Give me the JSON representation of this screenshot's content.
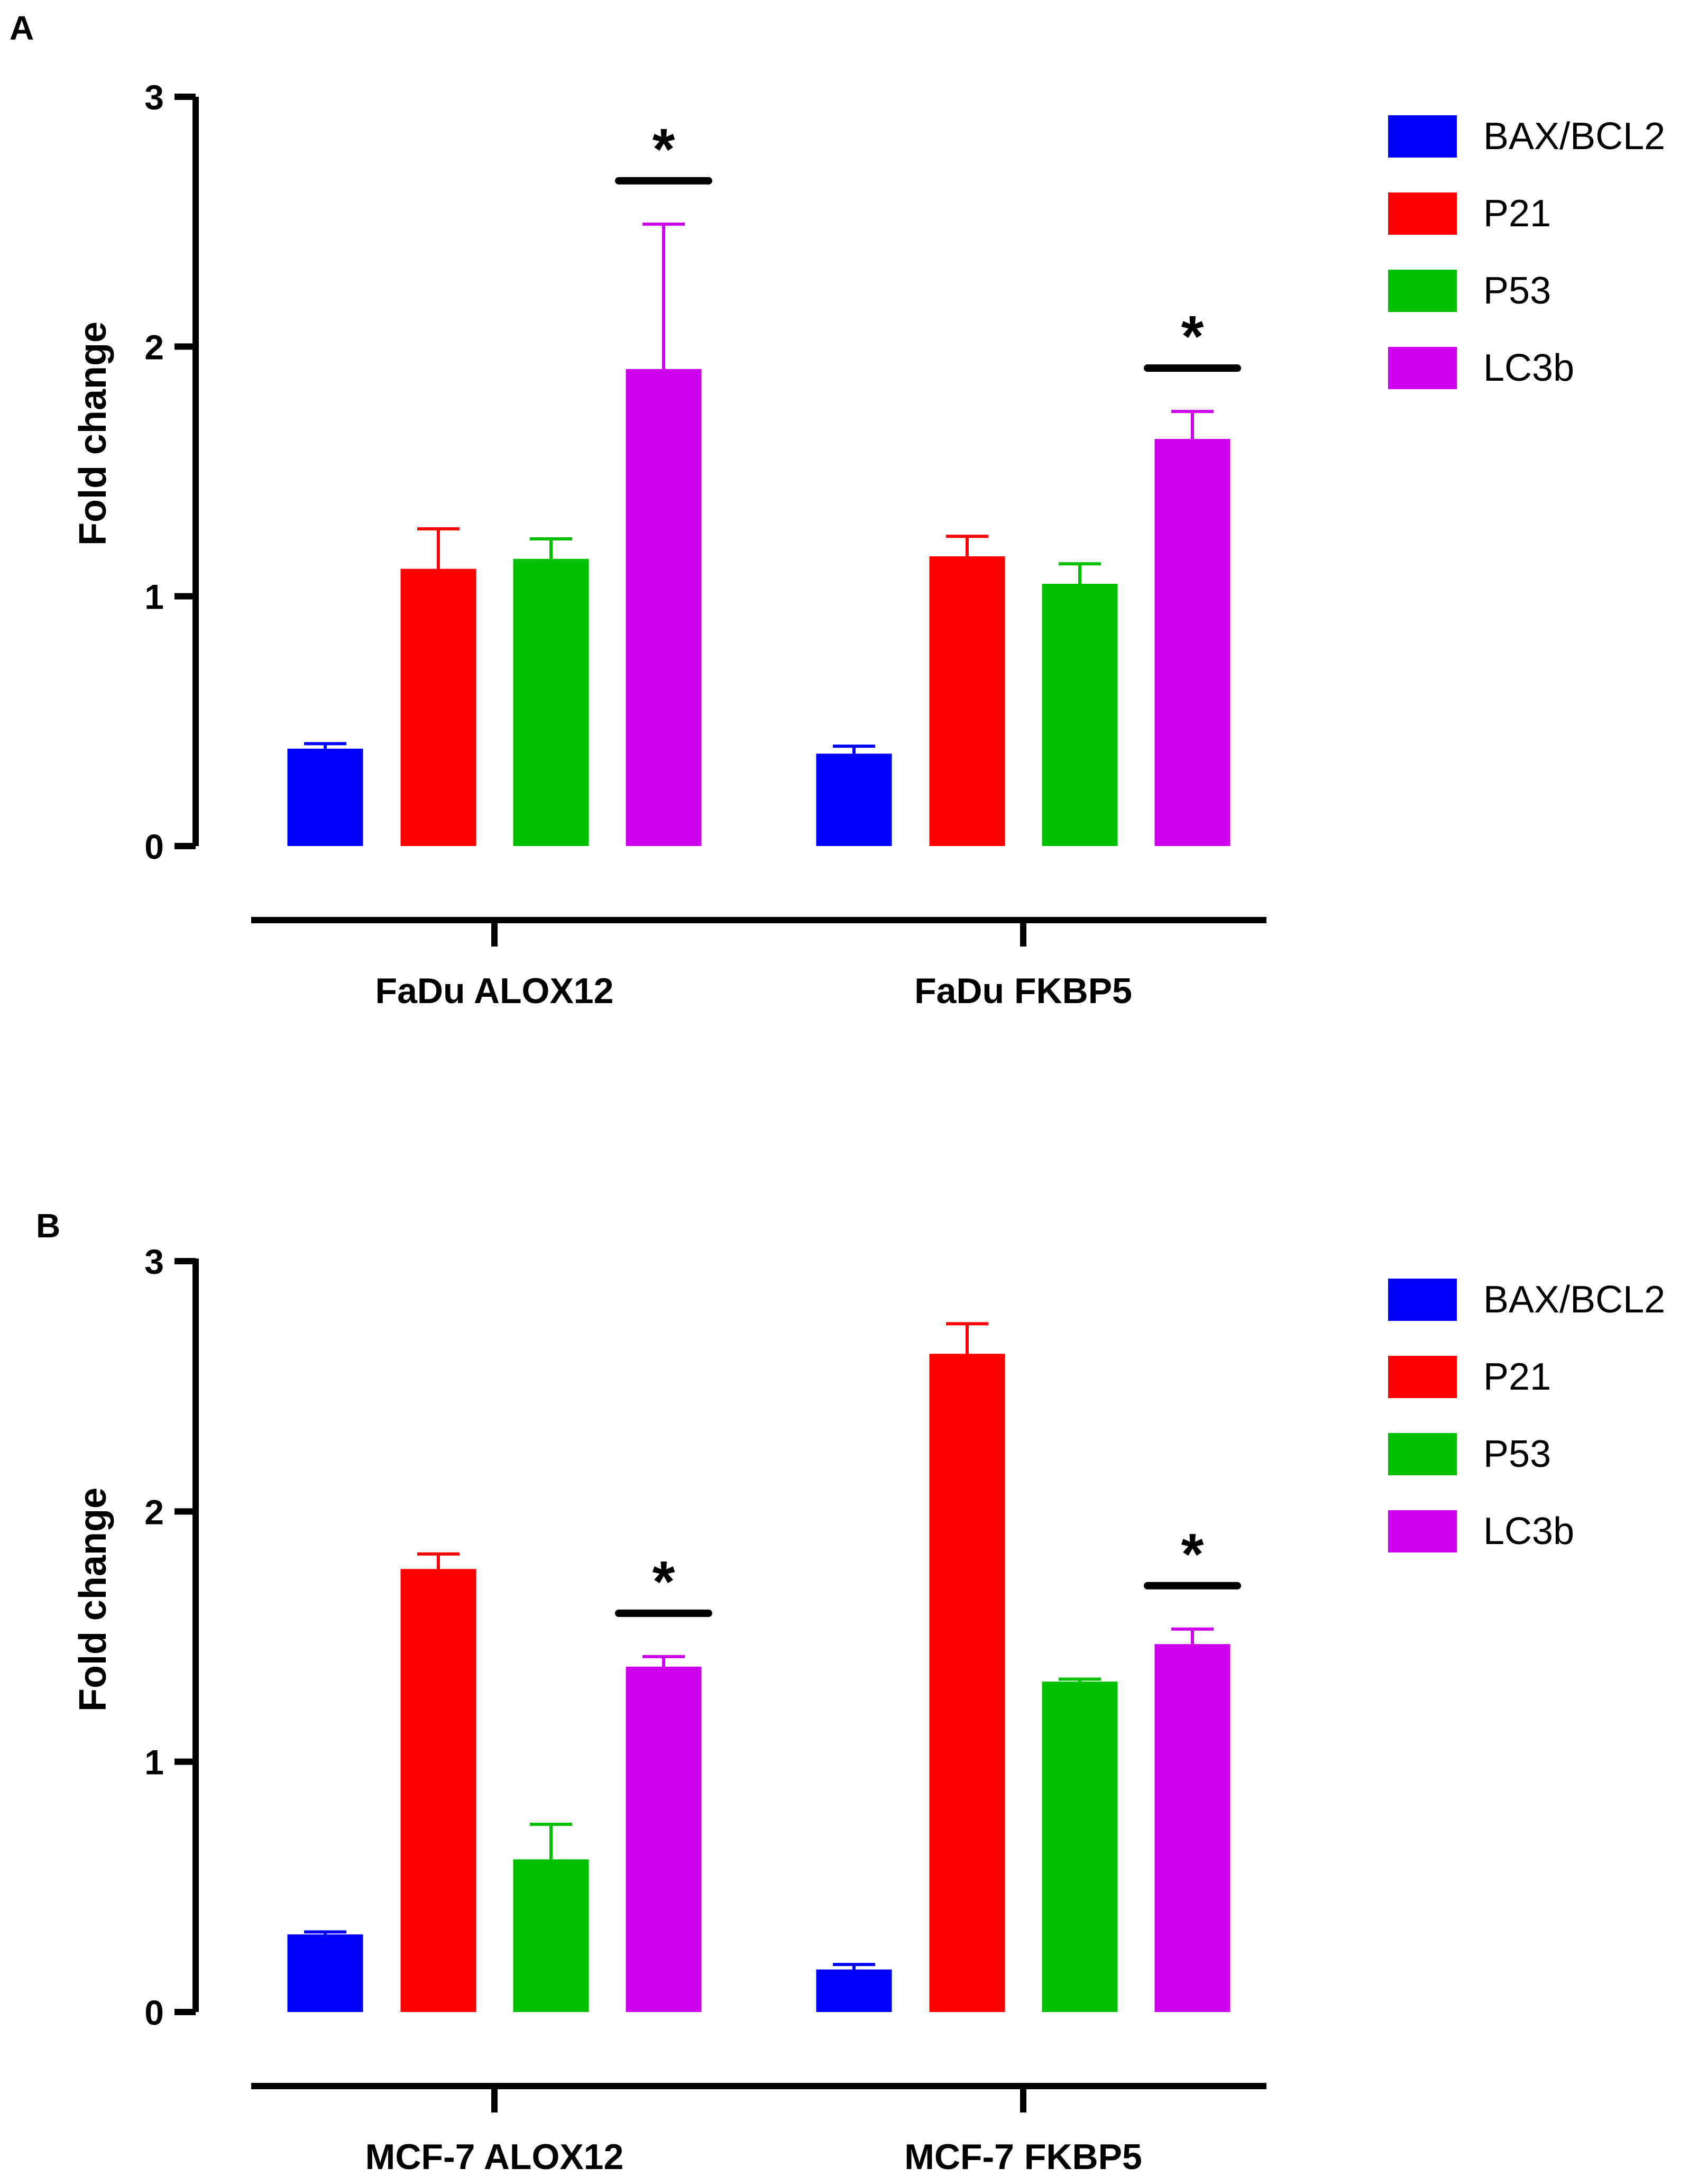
{
  "legend": {
    "entries": [
      "BAX/BCL2",
      "P21",
      "P53",
      "LC3b"
    ],
    "colors": [
      "#0000ff",
      "#ff0000",
      "#00c000",
      "#cc00ee"
    ]
  },
  "chart_data": [
    {
      "panel_label": "A",
      "type": "bar",
      "ylabel": "Fold change",
      "xlabel": "",
      "ylim": [
        0,
        3
      ],
      "yticks": [
        "0",
        "1",
        "2",
        "3"
      ],
      "categories": [
        "FaDu ALOX12",
        "FaDu FKBP5"
      ],
      "series": [
        {
          "name": "BAX/BCL2",
          "values": [
            0.39,
            0.37
          ],
          "errors": [
            0.02,
            0.03
          ]
        },
        {
          "name": "P21",
          "values": [
            1.11,
            1.16
          ],
          "errors": [
            0.16,
            0.08
          ]
        },
        {
          "name": "P53",
          "values": [
            1.15,
            1.05
          ],
          "errors": [
            0.08,
            0.08
          ]
        },
        {
          "name": "LC3b",
          "values": [
            1.91,
            1.63
          ],
          "errors": [
            0.58,
            0.11
          ]
        }
      ],
      "significance": [
        {
          "category": 0,
          "series": 3,
          "label": "*"
        },
        {
          "category": 1,
          "series": 3,
          "label": "*"
        }
      ],
      "legend": "top-right"
    },
    {
      "panel_label": "B",
      "type": "bar",
      "ylabel": "Fold change",
      "xlabel": "",
      "ylim": [
        0,
        3
      ],
      "yticks": [
        "0",
        "1",
        "2",
        "3"
      ],
      "categories": [
        "MCF-7 ALOX12",
        "MCF-7 FKBP5"
      ],
      "series": [
        {
          "name": "BAX/BCL2",
          "values": [
            0.31,
            0.17
          ],
          "errors": [
            0.01,
            0.02
          ]
        },
        {
          "name": "P21",
          "values": [
            1.77,
            2.63
          ],
          "errors": [
            0.06,
            0.12
          ]
        },
        {
          "name": "P53",
          "values": [
            0.61,
            1.32
          ],
          "errors": [
            0.14,
            0.01
          ]
        },
        {
          "name": "LC3b",
          "values": [
            1.38,
            1.47
          ],
          "errors": [
            0.04,
            0.06
          ]
        }
      ],
      "significance": [
        {
          "category": 0,
          "series": 3,
          "label": "*"
        },
        {
          "category": 1,
          "series": 3,
          "label": "*"
        }
      ],
      "legend": "top-right"
    }
  ]
}
